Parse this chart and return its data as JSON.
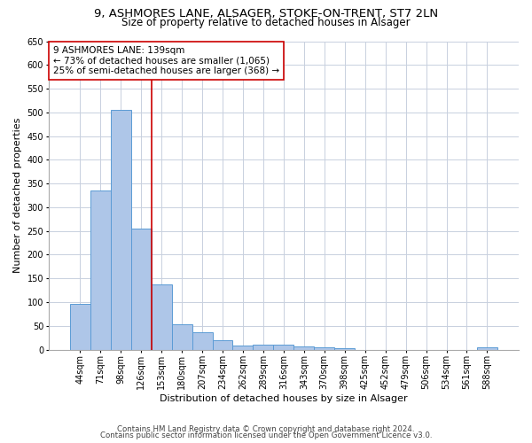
{
  "title1": "9, ASHMORES LANE, ALSAGER, STOKE-ON-TRENT, ST7 2LN",
  "title2": "Size of property relative to detached houses in Alsager",
  "xlabel": "Distribution of detached houses by size in Alsager",
  "ylabel": "Number of detached properties",
  "categories": [
    "44sqm",
    "71sqm",
    "98sqm",
    "126sqm",
    "153sqm",
    "180sqm",
    "207sqm",
    "234sqm",
    "262sqm",
    "289sqm",
    "316sqm",
    "343sqm",
    "370sqm",
    "398sqm",
    "425sqm",
    "452sqm",
    "479sqm",
    "506sqm",
    "534sqm",
    "561sqm",
    "588sqm"
  ],
  "values": [
    97,
    335,
    505,
    255,
    138,
    53,
    37,
    20,
    8,
    10,
    10,
    6,
    5,
    3,
    0,
    0,
    0,
    0,
    0,
    0,
    5
  ],
  "bar_color": "#aec6e8",
  "bar_edge_color": "#5b9bd5",
  "vline_x_index": 3.5,
  "vline_color": "#cc0000",
  "ylim": [
    0,
    650
  ],
  "yticks": [
    0,
    50,
    100,
    150,
    200,
    250,
    300,
    350,
    400,
    450,
    500,
    550,
    600,
    650
  ],
  "annotation_text": "9 ASHMORES LANE: 139sqm\n← 73% of detached houses are smaller (1,065)\n25% of semi-detached houses are larger (368) →",
  "annotation_box_color": "#ffffff",
  "annotation_box_edge": "#cc0000",
  "footer1": "Contains HM Land Registry data © Crown copyright and database right 2024.",
  "footer2": "Contains public sector information licensed under the Open Government Licence v3.0.",
  "background_color": "#ffffff",
  "grid_color": "#c8d0de",
  "title1_fontsize": 9.5,
  "title2_fontsize": 8.5,
  "xlabel_fontsize": 8,
  "ylabel_fontsize": 8,
  "tick_fontsize": 7,
  "footer_fontsize": 6.2,
  "annotation_fontsize": 7.5
}
